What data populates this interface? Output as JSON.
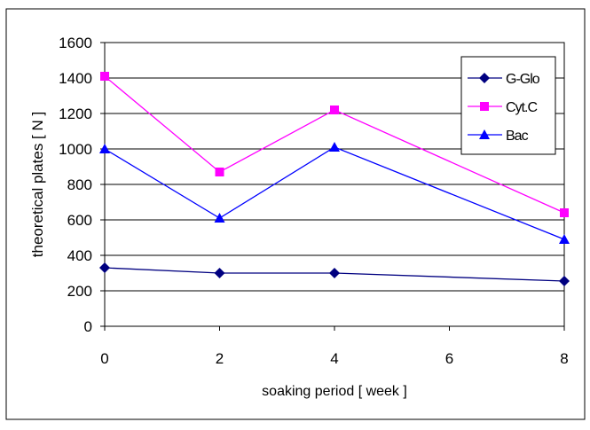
{
  "chart_data": {
    "type": "line",
    "title": "",
    "xlabel": "soaking period [ week ]",
    "ylabel": "theoretical plates [ N ]",
    "x": [
      0,
      2,
      4,
      8
    ],
    "xticks": [
      "0",
      "2",
      "4",
      "6",
      "8"
    ],
    "xlim": [
      0,
      8
    ],
    "yticks": [
      "0",
      "200",
      "400",
      "600",
      "800",
      "1000",
      "1200",
      "1400",
      "1600"
    ],
    "ylim": [
      0,
      1600
    ],
    "grid": "horizontal",
    "legend_position": "top-right",
    "series": [
      {
        "name": "G-Glo",
        "values": [
          330,
          300,
          300,
          255
        ],
        "color": "#000080",
        "marker": "diamond"
      },
      {
        "name": "Cyt.C",
        "values": [
          1410,
          870,
          1220,
          640
        ],
        "color": "#ff00ff",
        "marker": "square"
      },
      {
        "name": "Bac",
        "values": [
          1000,
          610,
          1010,
          490
        ],
        "color": "#0000ff",
        "marker": "triangle"
      }
    ]
  }
}
